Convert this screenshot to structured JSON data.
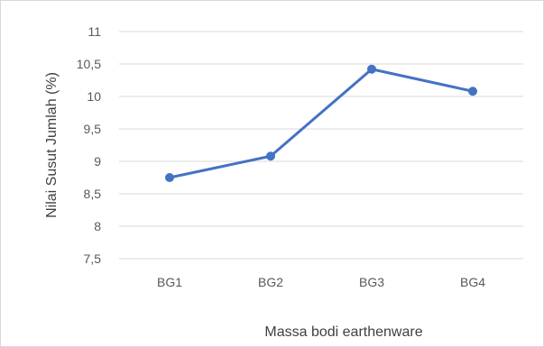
{
  "chart_data": {
    "type": "line",
    "title": "",
    "xlabel": "Massa bodi earthenware",
    "ylabel": "Nilai Susut Jumlah (%)",
    "categories": [
      "BG1",
      "BG2",
      "BG3",
      "BG4"
    ],
    "series": [
      {
        "values": [
          8.75,
          9.08,
          10.42,
          10.08
        ]
      }
    ],
    "ylim": [
      7.5,
      11
    ],
    "yticks": [
      "7,5",
      "8",
      "8,5",
      "9",
      "9,5",
      "10",
      "10,5",
      "11"
    ],
    "grid": true,
    "legend": "none",
    "colors": {
      "line": "#4472c4",
      "grid": "#d9d9d9"
    }
  }
}
